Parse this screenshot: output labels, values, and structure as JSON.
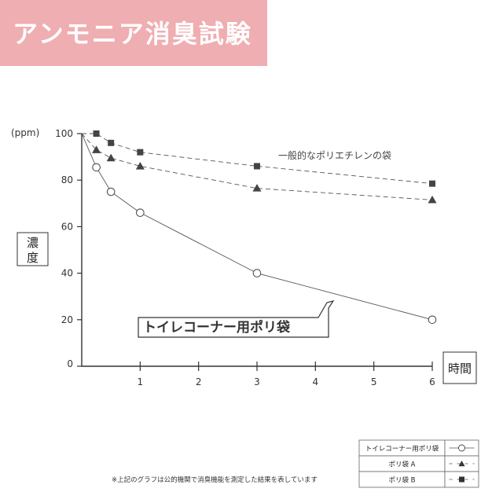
{
  "page_title": "アンモニア消臭試験",
  "annotation": "一般的なポリエチレンの袋",
  "callout": "トイレコーナー用ポリ袋",
  "footnote": "※上記のグラフは公的機関で消臭機能を測定した結果を表しています",
  "colors": {
    "title_band": "#efaeb1",
    "series_solid": "#555555",
    "series_dashed": "#555555",
    "marker_fill": "#444444"
  },
  "chart_data": {
    "type": "line",
    "y_unit_label": "(ppm)",
    "ylabel": "濃度",
    "xlabel": "時間",
    "xlim": [
      0,
      6
    ],
    "ylim": [
      0,
      100
    ],
    "x_ticks": [
      1,
      2,
      3,
      4,
      5,
      6
    ],
    "y_ticks": [
      0,
      20,
      40,
      60,
      80,
      100
    ],
    "grid": false,
    "legend_position": "bottom-right",
    "series": [
      {
        "name": "トイレコーナー用ポリ袋",
        "line_style": "solid",
        "marker": "open-circle",
        "legend_marker": "—○—",
        "points": [
          [
            0,
            100
          ],
          [
            0.25,
            85.5
          ],
          [
            0.5,
            75
          ],
          [
            1,
            66
          ],
          [
            3,
            40
          ],
          [
            6,
            20
          ]
        ]
      },
      {
        "name": "ポリ袋 A",
        "line_style": "dashed",
        "marker": "triangle",
        "legend_marker": "– ▲ –",
        "points": [
          [
            0,
            100
          ],
          [
            0.25,
            93
          ],
          [
            0.5,
            89.5
          ],
          [
            1,
            86
          ],
          [
            3,
            76.5
          ],
          [
            6,
            71.5
          ]
        ]
      },
      {
        "name": "ポリ袋 B",
        "line_style": "dashed",
        "marker": "square",
        "legend_marker": "– ■ –",
        "points": [
          [
            0,
            100
          ],
          [
            0.25,
            100
          ],
          [
            0.5,
            96
          ],
          [
            1,
            92
          ],
          [
            3,
            86
          ],
          [
            6,
            78.5
          ]
        ]
      }
    ]
  }
}
